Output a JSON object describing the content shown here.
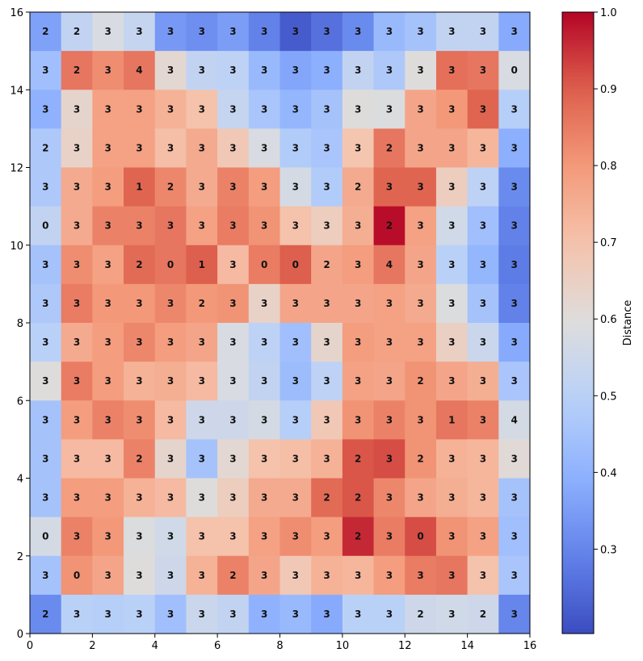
{
  "chart_data": {
    "type": "heatmap",
    "title": "",
    "xlabel": "",
    "ylabel": "",
    "xlim": [
      0,
      16
    ],
    "ylim": [
      0,
      16
    ],
    "x_ticks": [
      0,
      2,
      4,
      6,
      8,
      10,
      12,
      14,
      16
    ],
    "y_ticks": [
      0,
      2,
      4,
      6,
      8,
      10,
      12,
      14,
      16
    ],
    "colorbar": {
      "label": "Distance",
      "min": 0.19,
      "max": 1.0,
      "ticks": [
        0.3,
        0.4,
        0.5,
        0.6,
        0.7,
        0.8,
        0.9,
        1.0
      ],
      "tick_labels": [
        "0.3",
        "0.4",
        "0.5",
        "0.6",
        "0.7",
        "0.8",
        "0.9",
        "1.0"
      ],
      "colormap": "coolwarm"
    },
    "rows_top_to_bottom": [
      [
        0.36,
        0.52,
        0.58,
        0.53,
        0.34,
        0.32,
        0.35,
        0.29,
        0.22,
        0.26,
        0.31,
        0.42,
        0.45,
        0.52,
        0.52,
        0.38
      ],
      [
        0.44,
        0.86,
        0.82,
        0.86,
        0.62,
        0.52,
        0.51,
        0.42,
        0.37,
        0.39,
        0.52,
        0.47,
        0.6,
        0.87,
        0.86,
        0.58
      ],
      [
        0.4,
        0.63,
        0.78,
        0.78,
        0.74,
        0.7,
        0.53,
        0.46,
        0.41,
        0.45,
        0.6,
        0.59,
        0.77,
        0.8,
        0.89,
        0.49
      ],
      [
        0.47,
        0.64,
        0.78,
        0.78,
        0.71,
        0.76,
        0.68,
        0.58,
        0.48,
        0.46,
        0.69,
        0.86,
        0.77,
        0.77,
        0.73,
        0.39
      ],
      [
        0.47,
        0.76,
        0.79,
        0.89,
        0.83,
        0.76,
        0.84,
        0.79,
        0.57,
        0.48,
        0.76,
        0.89,
        0.89,
        0.66,
        0.51,
        0.31
      ],
      [
        0.52,
        0.76,
        0.84,
        0.84,
        0.86,
        0.78,
        0.85,
        0.81,
        0.7,
        0.66,
        0.75,
        0.99,
        0.78,
        0.56,
        0.44,
        0.29
      ],
      [
        0.45,
        0.82,
        0.78,
        0.88,
        0.86,
        0.9,
        0.72,
        0.85,
        0.9,
        0.77,
        0.79,
        0.86,
        0.77,
        0.5,
        0.41,
        0.28
      ],
      [
        0.47,
        0.85,
        0.8,
        0.8,
        0.83,
        0.8,
        0.81,
        0.64,
        0.77,
        0.77,
        0.77,
        0.78,
        0.76,
        0.59,
        0.45,
        0.29
      ],
      [
        0.5,
        0.76,
        0.79,
        0.83,
        0.79,
        0.77,
        0.58,
        0.51,
        0.44,
        0.63,
        0.79,
        0.78,
        0.78,
        0.65,
        0.54,
        0.38
      ],
      [
        0.6,
        0.85,
        0.79,
        0.74,
        0.75,
        0.72,
        0.58,
        0.52,
        0.43,
        0.51,
        0.78,
        0.77,
        0.81,
        0.77,
        0.75,
        0.46
      ],
      [
        0.45,
        0.79,
        0.84,
        0.82,
        0.72,
        0.55,
        0.55,
        0.57,
        0.49,
        0.68,
        0.81,
        0.84,
        0.81,
        0.86,
        0.84,
        0.57
      ],
      [
        0.45,
        0.72,
        0.72,
        0.84,
        0.63,
        0.45,
        0.62,
        0.7,
        0.71,
        0.74,
        0.91,
        0.92,
        0.81,
        0.74,
        0.73,
        0.61
      ],
      [
        0.45,
        0.79,
        0.79,
        0.74,
        0.72,
        0.6,
        0.66,
        0.76,
        0.76,
        0.88,
        0.91,
        0.83,
        0.77,
        0.75,
        0.73,
        0.45
      ],
      [
        0.57,
        0.84,
        0.8,
        0.59,
        0.56,
        0.7,
        0.7,
        0.78,
        0.82,
        0.79,
        0.96,
        0.85,
        0.92,
        0.81,
        0.78,
        0.44
      ],
      [
        0.45,
        0.81,
        0.77,
        0.6,
        0.55,
        0.74,
        0.84,
        0.77,
        0.68,
        0.74,
        0.73,
        0.79,
        0.85,
        0.86,
        0.7,
        0.46
      ],
      [
        0.31,
        0.5,
        0.49,
        0.5,
        0.44,
        0.54,
        0.52,
        0.4,
        0.42,
        0.38,
        0.5,
        0.5,
        0.55,
        0.56,
        0.55,
        0.3
      ]
    ],
    "cell_labels_top_to_bottom": [
      [
        "2",
        "2",
        "3",
        "3",
        "3",
        "3",
        "3",
        "3",
        "3",
        "3",
        "3",
        "3",
        "3",
        "3",
        "3",
        "3"
      ],
      [
        "3",
        "2",
        "3",
        "4",
        "3",
        "3",
        "3",
        "3",
        "3",
        "3",
        "3",
        "3",
        "3",
        "3",
        "3",
        "0"
      ],
      [
        "3",
        "3",
        "3",
        "3",
        "3",
        "3",
        "3",
        "3",
        "3",
        "3",
        "3",
        "3",
        "3",
        "3",
        "3",
        "3"
      ],
      [
        "2",
        "3",
        "3",
        "3",
        "3",
        "3",
        "3",
        "3",
        "3",
        "3",
        "3",
        "2",
        "3",
        "3",
        "3",
        "3"
      ],
      [
        "3",
        "3",
        "3",
        "1",
        "2",
        "3",
        "3",
        "3",
        "3",
        "3",
        "2",
        "3",
        "3",
        "3",
        "3",
        "3"
      ],
      [
        "0",
        "3",
        "3",
        "3",
        "3",
        "3",
        "3",
        "3",
        "3",
        "3",
        "3",
        "2",
        "3",
        "3",
        "3",
        "3"
      ],
      [
        "3",
        "3",
        "3",
        "2",
        "0",
        "1",
        "3",
        "0",
        "0",
        "2",
        "3",
        "4",
        "3",
        "3",
        "3",
        "3"
      ],
      [
        "3",
        "3",
        "3",
        "3",
        "3",
        "2",
        "3",
        "3",
        "3",
        "3",
        "3",
        "3",
        "3",
        "3",
        "3",
        "3"
      ],
      [
        "3",
        "3",
        "3",
        "3",
        "3",
        "3",
        "3",
        "3",
        "3",
        "3",
        "3",
        "3",
        "3",
        "3",
        "3",
        "3"
      ],
      [
        "3",
        "3",
        "3",
        "3",
        "3",
        "3",
        "3",
        "3",
        "3",
        "3",
        "3",
        "3",
        "2",
        "3",
        "3",
        "3"
      ],
      [
        "3",
        "3",
        "3",
        "3",
        "3",
        "3",
        "3",
        "3",
        "3",
        "3",
        "3",
        "3",
        "3",
        "1",
        "3",
        "4"
      ],
      [
        "3",
        "3",
        "3",
        "2",
        "3",
        "3",
        "3",
        "3",
        "3",
        "3",
        "2",
        "3",
        "2",
        "3",
        "3",
        "3"
      ],
      [
        "3",
        "3",
        "3",
        "3",
        "3",
        "3",
        "3",
        "3",
        "3",
        "2",
        "2",
        "3",
        "3",
        "3",
        "3",
        "3"
      ],
      [
        "0",
        "3",
        "3",
        "3",
        "3",
        "3",
        "3",
        "3",
        "3",
        "3",
        "2",
        "3",
        "0",
        "3",
        "3",
        "3"
      ],
      [
        "3",
        "0",
        "3",
        "3",
        "3",
        "3",
        "2",
        "3",
        "3",
        "3",
        "3",
        "3",
        "3",
        "3",
        "3",
        "3"
      ],
      [
        "2",
        "3",
        "3",
        "3",
        "3",
        "3",
        "3",
        "3",
        "3",
        "3",
        "3",
        "3",
        "2",
        "3",
        "2",
        "3"
      ]
    ]
  }
}
